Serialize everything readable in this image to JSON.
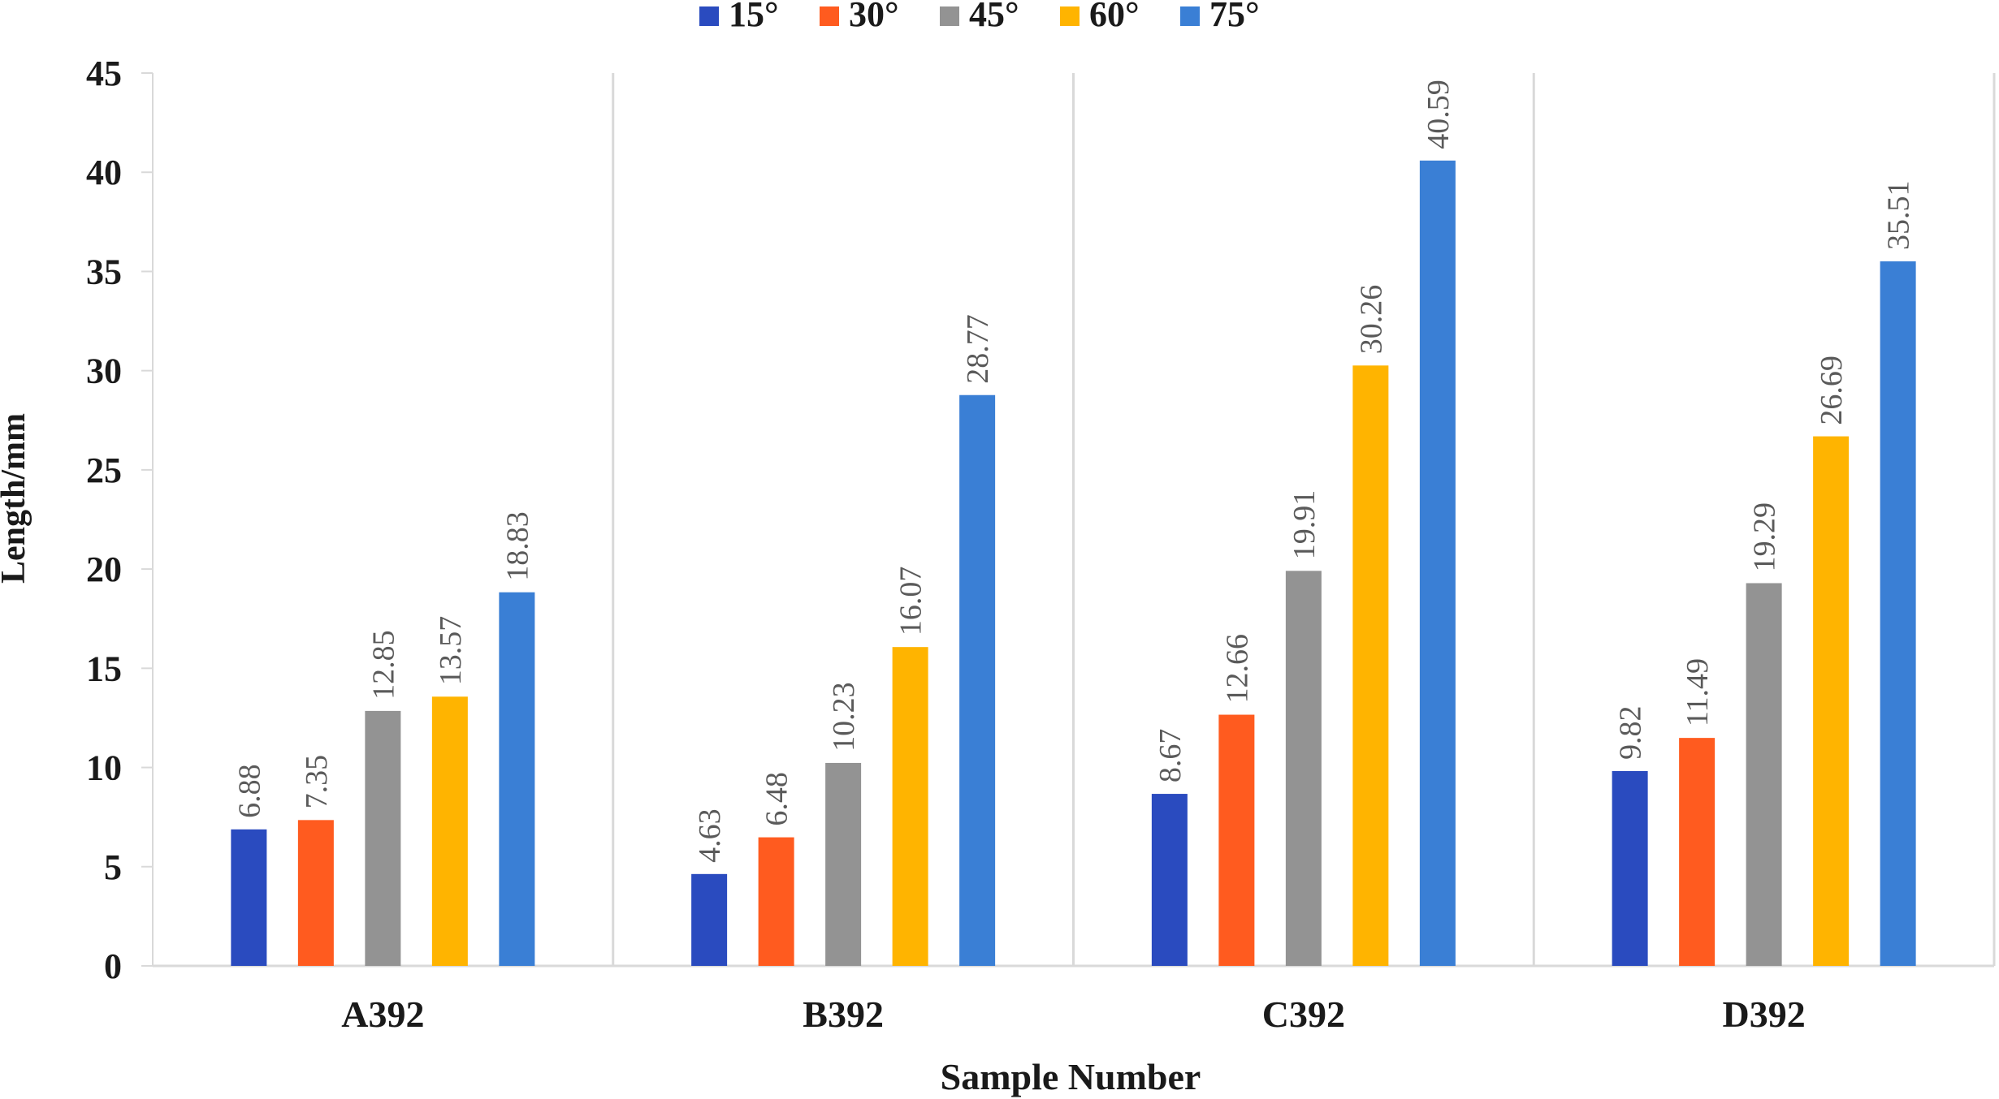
{
  "chart_data": {
    "type": "bar",
    "title": "",
    "xlabel": "Sample Number",
    "ylabel": "Length/mm",
    "categories": [
      "A392",
      "B392",
      "C392",
      "D392"
    ],
    "series": [
      {
        "name": "15°",
        "color": "#2a4bbf",
        "values": [
          6.88,
          4.63,
          8.67,
          9.82
        ],
        "labels": [
          "6.88",
          "4.63",
          "8.67",
          "9.82"
        ]
      },
      {
        "name": "30°",
        "color": "#ff5b1f",
        "values": [
          7.35,
          6.48,
          12.66,
          11.49
        ],
        "labels": [
          "7.35",
          "6.48",
          "12.66",
          "11.49"
        ]
      },
      {
        "name": "45°",
        "color": "#939393",
        "values": [
          12.85,
          10.23,
          19.91,
          19.29
        ],
        "labels": [
          "12.85",
          "10.23",
          "19.91",
          "19.29"
        ]
      },
      {
        "name": "60°",
        "color": "#ffb400",
        "values": [
          13.57,
          16.07,
          30.26,
          26.69
        ],
        "labels": [
          "13.57",
          "16.07",
          "30.26",
          "26.69"
        ]
      },
      {
        "name": "75°",
        "color": "#3a7fd5",
        "values": [
          18.83,
          28.77,
          40.59,
          35.51
        ],
        "labels": [
          "18.83",
          "28.77",
          "40.59",
          "35.51"
        ]
      }
    ],
    "ylim": [
      0,
      45
    ],
    "yticks": [
      "0",
      "5",
      "10",
      "15",
      "20",
      "25",
      "30",
      "35",
      "40",
      "45"
    ],
    "grid": false,
    "category_separators": true,
    "legend_position": "top-center"
  }
}
